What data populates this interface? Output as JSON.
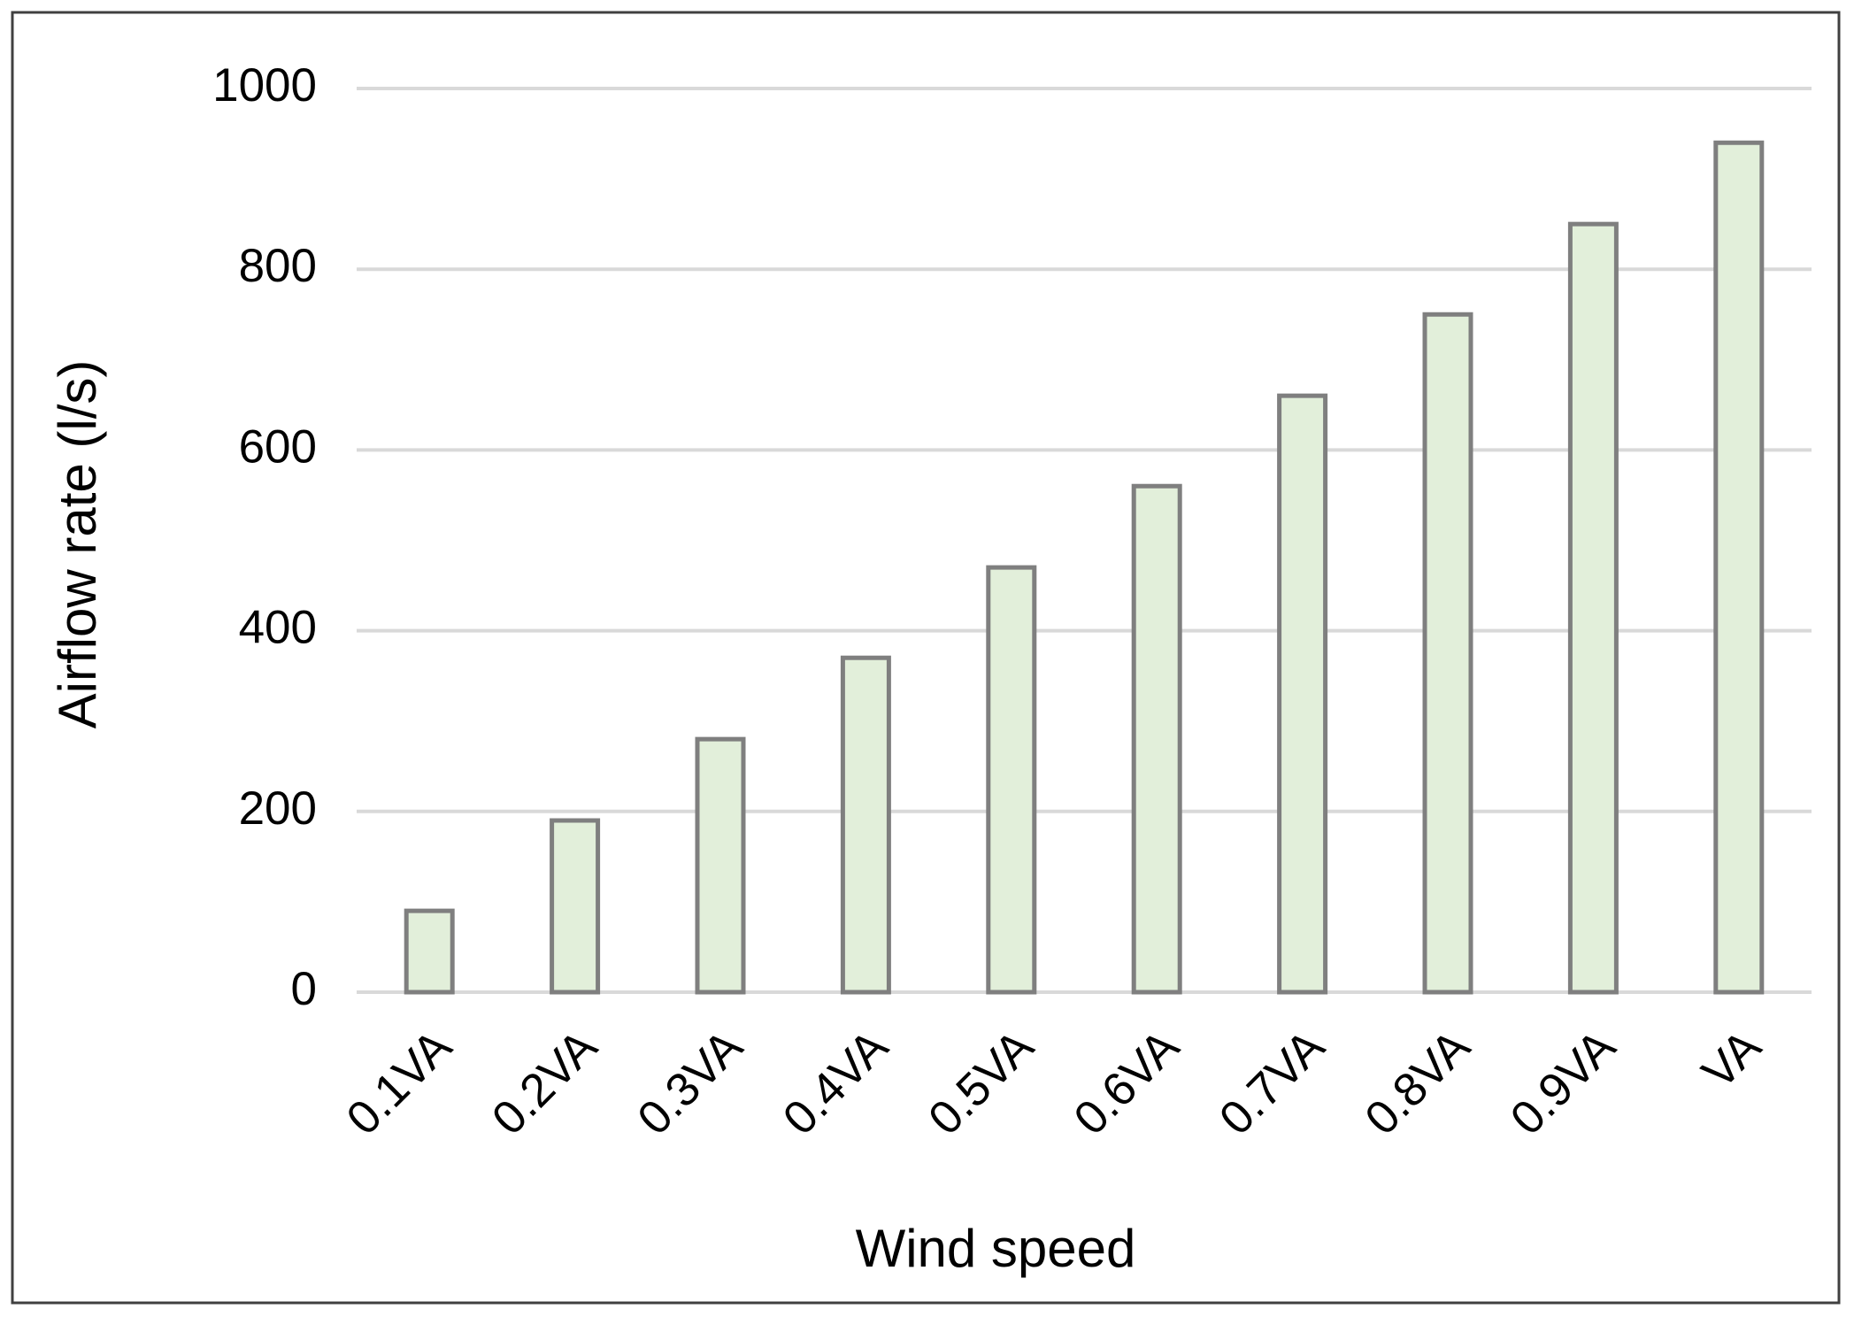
{
  "chart_data": {
    "type": "bar",
    "x_label": "Wind speed",
    "y_label": "Airflow rate (l/s)",
    "categories": [
      "0.1VA",
      "0.2VA",
      "0.3VA",
      "0.4VA",
      "0.5VA",
      "0.6VA",
      "0.7VA",
      "0.8VA",
      "0.9VA",
      "VA"
    ],
    "values": [
      90,
      190,
      280,
      370,
      470,
      560,
      660,
      750,
      850,
      940
    ],
    "color": "#e2efda",
    "edge_color": "#7f7f7f",
    "ylim": [
      0,
      1000
    ],
    "yticks": [
      0,
      200,
      400,
      600,
      800,
      1000
    ],
    "grid": true
  }
}
